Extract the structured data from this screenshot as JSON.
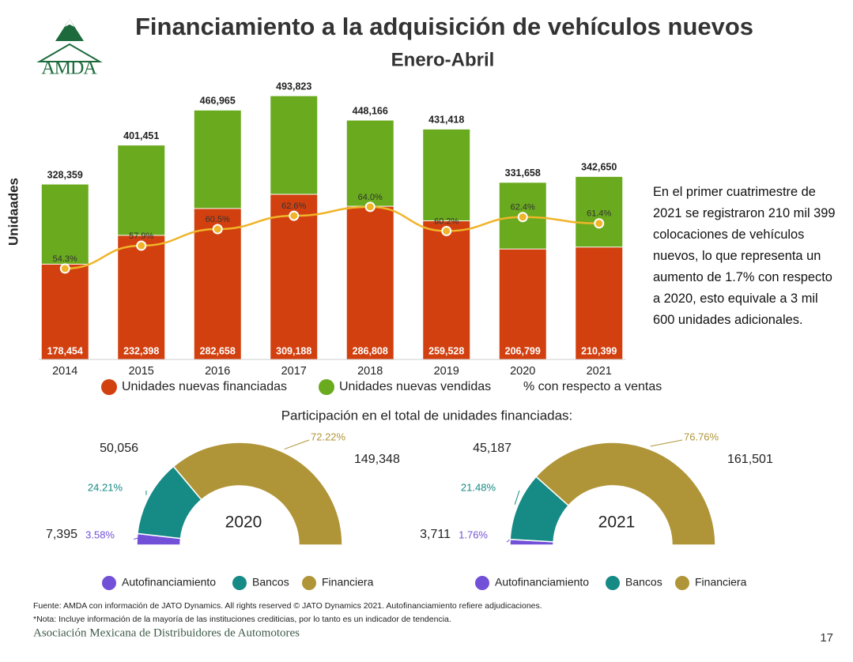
{
  "header": {
    "logo": "AMDA"
  },
  "chart_data": [
    {
      "type": "bar",
      "title": "Financiamiento a la adquisición de vehículos nuevos",
      "subtitle": "Enero-Abril",
      "y_label": "Unidaades",
      "categories": [
        "2014",
        "2015",
        "2016",
        "2017",
        "2018",
        "2019",
        "2020",
        "2021"
      ],
      "ylim": [
        0,
        500000
      ],
      "y2lim": [
        40,
        82
      ],
      "series": [
        {
          "name": "Unidades nuevas vendidas",
          "color": "#6aaa1e",
          "values": [
            328359,
            401451,
            466965,
            493823,
            448166,
            431418,
            331658,
            342650
          ],
          "value_labels": [
            "328,359",
            "401,451",
            "466,965",
            "493,823",
            "448,166",
            "431,418",
            "331,658",
            "342,650"
          ]
        },
        {
          "name": "Unidades nuevas financiadas",
          "color": "#d2400f",
          "values": [
            178454,
            232398,
            282658,
            309188,
            286808,
            259528,
            206799,
            210399
          ],
          "value_labels": [
            "178,454",
            "232,398",
            "282,658",
            "309,188",
            "286,808",
            "259,528",
            "206,799",
            "210,399"
          ]
        },
        {
          "name": "% con respecto a ventas",
          "color": "#f0b429",
          "type": "line",
          "axis": "y2",
          "values": [
            54.3,
            57.9,
            60.5,
            62.6,
            64.0,
            60.2,
            62.4,
            61.4
          ],
          "value_labels": [
            "54.3%",
            "57.9%",
            "60.5%",
            "62.6%",
            "64.0%",
            "60.2%",
            "62.4%",
            "61.4%"
          ]
        }
      ]
    },
    {
      "type": "semi-donut",
      "title": "2020",
      "categories": [
        "Autofinanciamiento",
        "Bancos",
        "Financiera"
      ],
      "colors": [
        "#7350d8",
        "#168a85",
        "#b09538"
      ],
      "values": [
        7395,
        50056,
        149348
      ],
      "value_labels": [
        "7,395",
        "50,056",
        "149,348"
      ],
      "shares": [
        3.58,
        24.21,
        72.22
      ],
      "share_labels": [
        "3.58%",
        "24.21%",
        "72.22%"
      ]
    },
    {
      "type": "semi-donut",
      "title": "2021",
      "categories": [
        "Autofinanciamiento",
        "Bancos",
        "Financiera"
      ],
      "colors": [
        "#7350d8",
        "#168a85",
        "#b09538"
      ],
      "values": [
        3711,
        45187,
        161501
      ],
      "value_labels": [
        "3,711",
        "45,187",
        "161,501"
      ],
      "shares": [
        1.76,
        21.48,
        76.76
      ],
      "share_labels": [
        "1.76%",
        "21.48%",
        "76.76%"
      ]
    }
  ],
  "donut_section_title": "Participación en el total de unidades financiadas:",
  "summary": "En el primer cuatrimestre de 2021 se registraron 210 mil 399 colocaciones de vehículos nuevos, lo que representa un aumento de 1.7% con respecto a 2020, esto equivale a 3 mil 600 unidades adicionales.",
  "footer": {
    "source": "Fuente: AMDA con información de JATO Dynamics. All rights reserved © JATO Dynamics 2021. Autofinanciamiento refiere adjudicaciones.",
    "note": "*Nota: Incluye información de la mayoría de las instituciones crediticias, por lo tanto es un indicador de tendencia.",
    "association": "Asociación Mexicana de Distribuidores de Automotores",
    "page": "17"
  }
}
